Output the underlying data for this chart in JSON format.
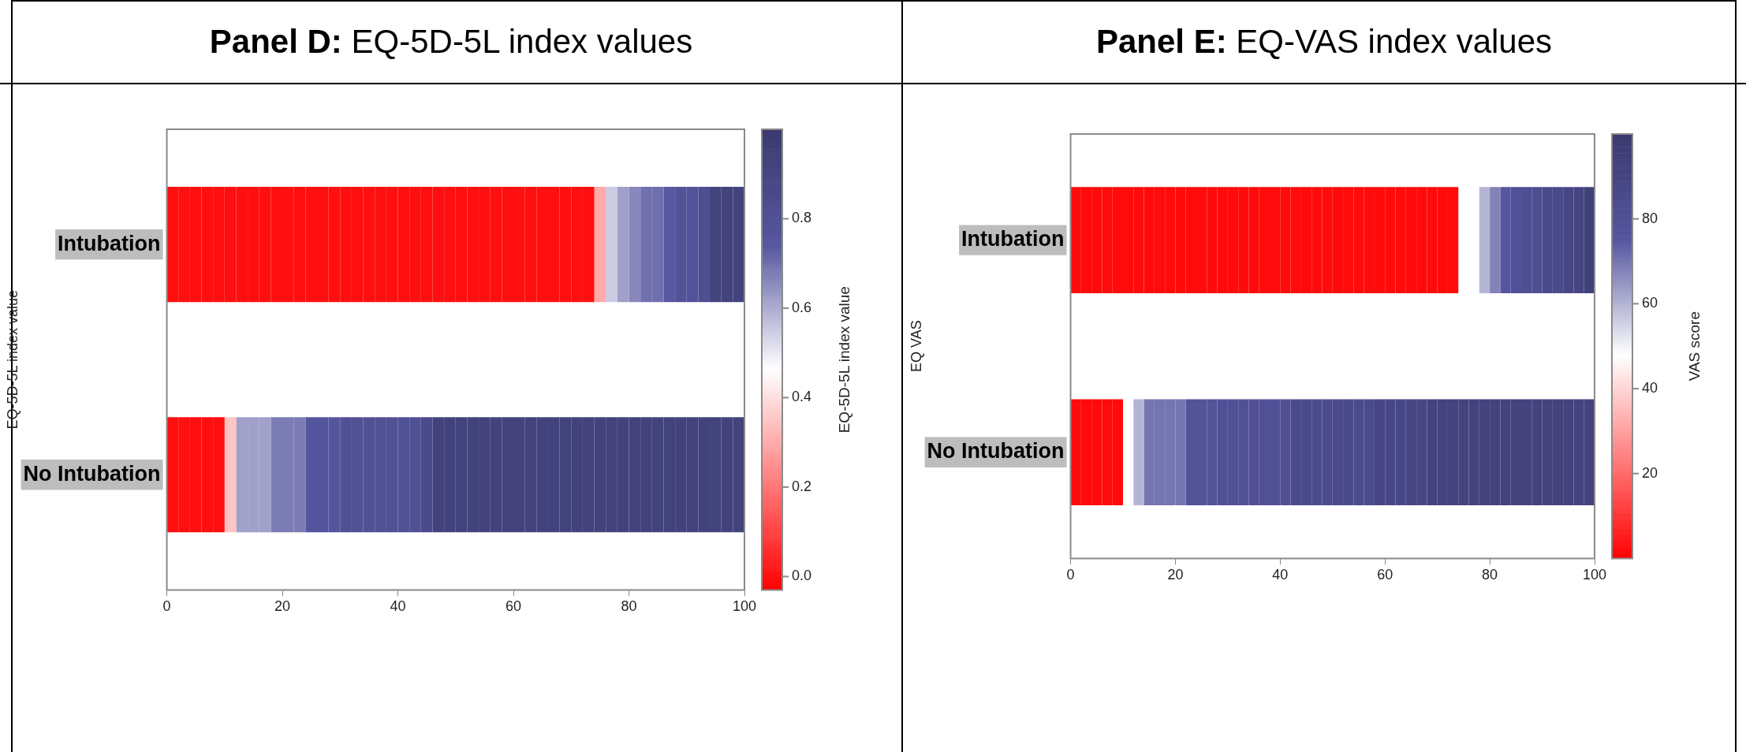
{
  "chart_data": [
    {
      "type": "heatmap",
      "title": "Panel D: EQ-5D-5L index values",
      "ylabel": "EQ-5D-5L index value",
      "clabel": "EQ-5D-5L index value",
      "x": [
        1,
        3,
        5,
        7,
        9,
        11,
        13,
        15,
        17,
        19,
        21,
        23,
        25,
        27,
        29,
        31,
        33,
        35,
        37,
        39,
        41,
        43,
        45,
        47,
        49,
        51,
        53,
        55,
        57,
        59,
        61,
        63,
        65,
        67,
        69,
        71,
        73,
        75,
        77,
        79,
        81,
        83,
        85,
        87,
        89,
        91,
        93,
        95,
        97,
        99
      ],
      "xlim": [
        0,
        100
      ],
      "xticks": [
        0,
        20,
        40,
        60,
        80,
        100
      ],
      "y_categories": [
        "Intubation",
        "No Intubation"
      ],
      "cells": [
        [
          0,
          0,
          0,
          0,
          0,
          0,
          0,
          0,
          0,
          0,
          0,
          0,
          0,
          0,
          0,
          0,
          0,
          0,
          0,
          0,
          0,
          0,
          0,
          0,
          0,
          0,
          0,
          0,
          0,
          0,
          0,
          0,
          0,
          0,
          0,
          0,
          0,
          0.3,
          0.55,
          0.62,
          0.66,
          0.7,
          0.7,
          0.74,
          0.78,
          0.78,
          0.82,
          0.92,
          0.92,
          0.92
        ],
        [
          0,
          0,
          0,
          0,
          0,
          0.35,
          0.62,
          0.62,
          0.62,
          0.68,
          0.68,
          0.68,
          0.75,
          0.75,
          0.75,
          0.8,
          0.8,
          0.8,
          0.8,
          0.8,
          0.8,
          0.8,
          0.85,
          0.93,
          0.93,
          0.93,
          0.93,
          0.93,
          0.93,
          0.93,
          0.93,
          0.93,
          0.93,
          0.93,
          0.93,
          0.93,
          0.93,
          0.93,
          0.93,
          0.93,
          0.93,
          0.93,
          0.93,
          0.93,
          0.93,
          0.93,
          0.93,
          0.93,
          0.93,
          0.93
        ]
      ],
      "clim": [
        -0.03,
        1.0
      ],
      "cticks": [
        {
          "value": 0,
          "label": "0.0"
        },
        0.2,
        0.4,
        0.6,
        0.8
      ]
    },
    {
      "type": "heatmap",
      "title": "Panel E: EQ-VAS index values",
      "ylabel": "EQ VAS",
      "clabel": "VAS score",
      "x": [
        1,
        3,
        5,
        7,
        9,
        11,
        13,
        15,
        17,
        19,
        21,
        23,
        25,
        27,
        29,
        31,
        33,
        35,
        37,
        39,
        41,
        43,
        45,
        47,
        49,
        51,
        53,
        55,
        57,
        59,
        61,
        63,
        65,
        67,
        69,
        71,
        73,
        75,
        77,
        79,
        81,
        83,
        85,
        87,
        89,
        91,
        93,
        95,
        97,
        99
      ],
      "xlim": [
        0,
        100
      ],
      "xticks": [
        0,
        20,
        40,
        60,
        80,
        100
      ],
      "y_categories": [
        "Intubation",
        "No Intubation"
      ],
      "cells": [
        [
          2,
          2,
          2,
          2,
          2,
          2,
          2,
          2,
          2,
          2,
          2,
          2,
          2,
          2,
          2,
          2,
          2,
          2,
          2,
          2,
          2,
          2,
          2,
          2,
          2,
          2,
          2,
          2,
          2,
          2,
          2,
          2,
          2,
          2,
          2,
          2,
          2,
          null,
          null,
          60,
          68,
          75,
          80,
          82,
          82,
          86,
          86,
          89,
          90,
          95
        ],
        [
          2,
          2,
          2,
          2,
          2,
          null,
          60,
          70,
          70,
          70,
          70,
          78,
          78,
          78,
          80,
          80,
          80,
          80,
          80,
          80,
          80,
          85,
          85,
          85,
          85,
          85,
          85,
          85,
          85,
          88,
          88,
          88,
          88,
          88,
          92,
          92,
          92,
          92,
          92,
          92,
          92,
          92,
          92,
          92,
          92,
          92,
          92,
          92,
          92,
          92
        ]
      ],
      "clim": [
        0,
        100
      ],
      "cticks": [
        20,
        40,
        60,
        80
      ]
    }
  ]
}
